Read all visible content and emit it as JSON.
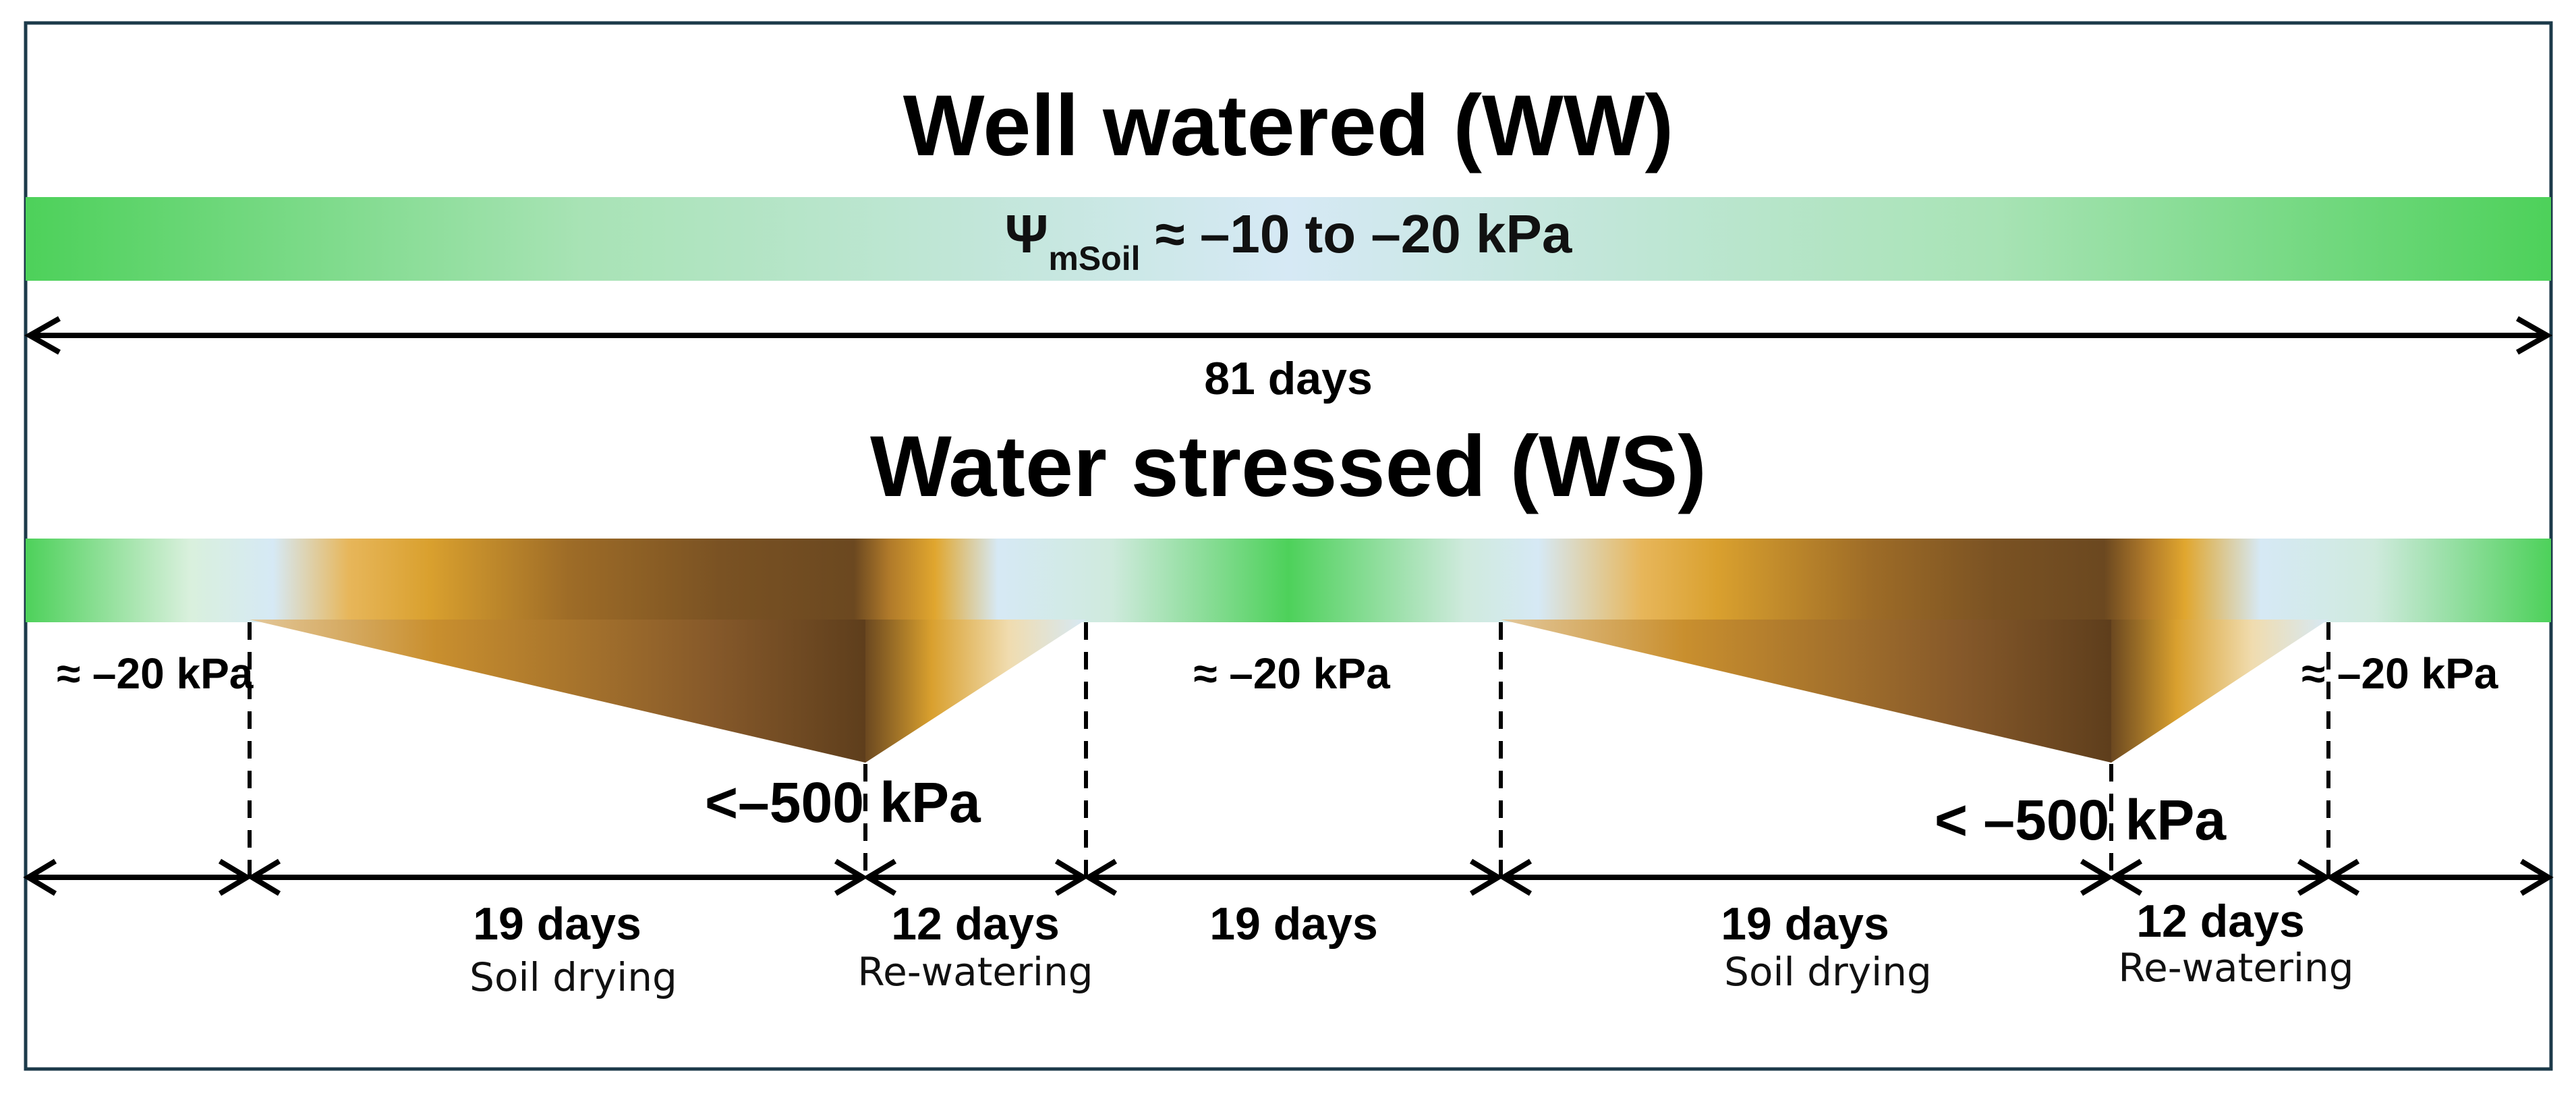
{
  "well_watered": {
    "title": "Well watered (WW)",
    "psi_symbol": "Ψ",
    "psi_subscript": "mSoil",
    "psi_range": " ≈ –10 to –20 kPa",
    "duration": "81 days"
  },
  "water_stressed": {
    "title": "Water stressed (WS)",
    "potential_labels": {
      "start": "≈ –20 kPa",
      "middle": "≈ –20 kPa",
      "end": "≈ –20 kPa",
      "min_1": "<–500 kPa",
      "min_2": "< –500 kPa"
    },
    "segments": [
      {
        "days": "",
        "phase": ""
      },
      {
        "days": "19 days",
        "phase": "Soil drying"
      },
      {
        "days": "12 days",
        "phase": "Re-watering"
      },
      {
        "days": "19 days",
        "phase": ""
      },
      {
        "days": "19 days",
        "phase": "Soil drying"
      },
      {
        "days": "12 days",
        "phase": "Re-watering"
      },
      {
        "days": "",
        "phase": ""
      }
    ]
  },
  "colors": {
    "border": "#1c3a4a",
    "green": "#4dd15a",
    "light_blue": "#d6e9f5",
    "gold": "#e0a62e",
    "brown": "#6e4a20"
  }
}
